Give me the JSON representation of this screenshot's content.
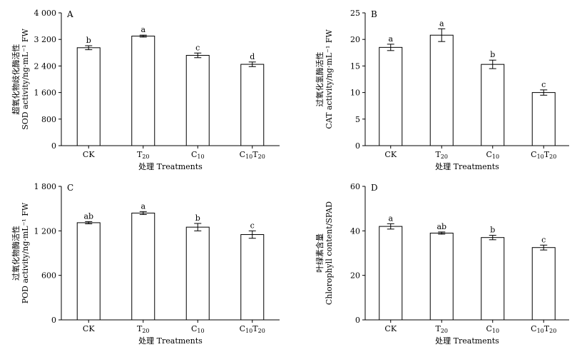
{
  "chart_data": [
    {
      "panel": "A",
      "type": "bar",
      "categories": [
        "CK",
        "T20",
        "C10",
        "C10T20"
      ],
      "values": [
        2950,
        3300,
        2720,
        2450
      ],
      "errors": [
        60,
        30,
        70,
        70
      ],
      "labels": [
        "b",
        "a",
        "c",
        "d"
      ],
      "ylim": [
        0,
        4000
      ],
      "yticks": [
        "0",
        "800",
        "1 600",
        "2 400",
        "3 200",
        "4 000"
      ],
      "ylabel_cn": "超氧化物歧化酶活性",
      "ylabel_en": "SOD activity/ng·mL⁻¹ FW",
      "xlabel": "处理 Treatments"
    },
    {
      "panel": "B",
      "type": "bar",
      "categories": [
        "CK",
        "T20",
        "C10",
        "C10T20"
      ],
      "values": [
        18.5,
        20.8,
        15.3,
        10.0
      ],
      "errors": [
        0.6,
        1.2,
        0.8,
        0.5
      ],
      "labels": [
        "a",
        "a",
        "b",
        "c"
      ],
      "ylim": [
        0,
        25
      ],
      "yticks": [
        "0",
        "5",
        "10",
        "15",
        "20",
        "25"
      ],
      "ylabel_cn": "过氧化氢酶活性",
      "ylabel_en": "CAT activity/ng·mL⁻¹ FW",
      "xlabel": "处理 Treatments"
    },
    {
      "panel": "C",
      "type": "bar",
      "categories": [
        "CK",
        "T20",
        "C10",
        "C10T20"
      ],
      "values": [
        1310,
        1440,
        1250,
        1150
      ],
      "errors": [
        15,
        20,
        50,
        50
      ],
      "labels": [
        "ab",
        "a",
        "b",
        "c"
      ],
      "ylim": [
        0,
        1800
      ],
      "yticks": [
        "0",
        "600",
        "1 200",
        "1 800"
      ],
      "ylabel_cn": "过氧化物酶活性",
      "ylabel_en": "POD activity/ng·mL⁻¹ FW",
      "xlabel": "处理 Treatments"
    },
    {
      "panel": "D",
      "type": "bar",
      "categories": [
        "CK",
        "T20",
        "C10",
        "C10T20"
      ],
      "values": [
        42.0,
        39.0,
        37.0,
        32.5
      ],
      "errors": [
        1.2,
        0.5,
        1.0,
        1.1
      ],
      "labels": [
        "a",
        "ab",
        "b",
        "c"
      ],
      "ylim": [
        0,
        60
      ],
      "yticks": [
        "0",
        "20",
        "40",
        "60"
      ],
      "ylabel_cn": "叶绿素含量",
      "ylabel_en": "Chlorophyll content/SPAD",
      "xlabel": "处理 Treatments"
    }
  ]
}
